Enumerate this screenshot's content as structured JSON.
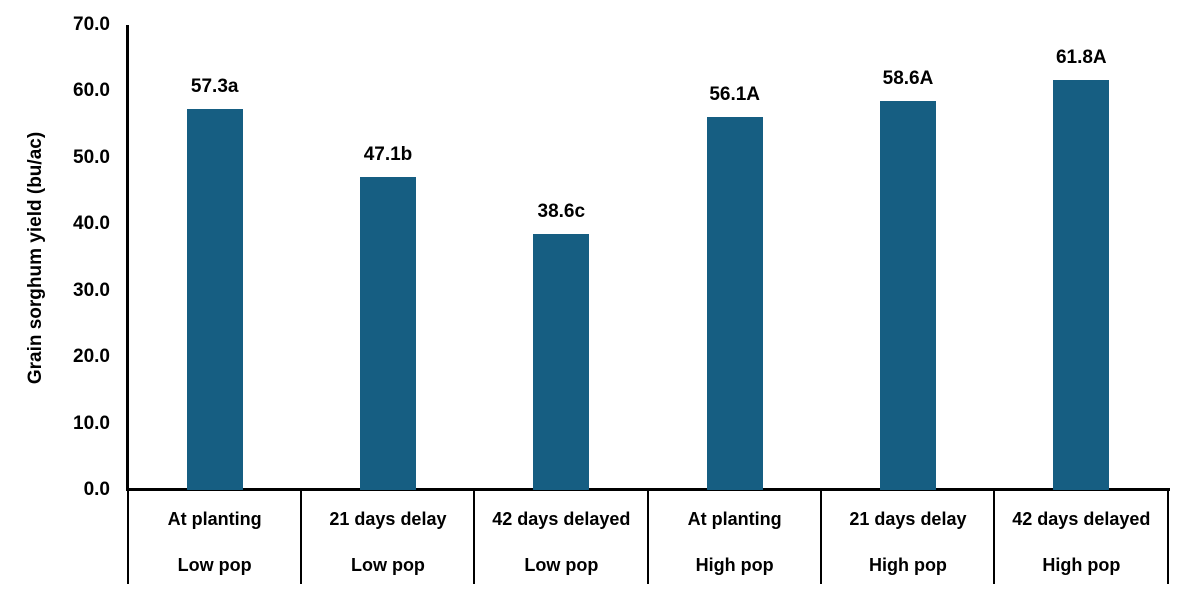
{
  "chart_data": {
    "type": "bar",
    "ylabel": "Grain sorghum yield (bu/ac)",
    "xlabel": "",
    "ylim": [
      0,
      70
    ],
    "ytick_step": 10,
    "ytick_labels": [
      "0.0",
      "10.0",
      "20.0",
      "30.0",
      "40.0",
      "50.0",
      "60.0",
      "70.0"
    ],
    "grid": false,
    "legend": false,
    "bar_color": "#165E82",
    "axis_color": "#000000",
    "categories": [
      {
        "line1": "At planting",
        "line2": "Low pop"
      },
      {
        "line1": "21 days delay",
        "line2": "Low pop"
      },
      {
        "line1": "42 days delayed",
        "line2": "Low pop"
      },
      {
        "line1": "At planting",
        "line2": "High pop"
      },
      {
        "line1": "21 days delay",
        "line2": "High pop"
      },
      {
        "line1": "42 days delayed",
        "line2": "High pop"
      }
    ],
    "values": [
      57.3,
      47.1,
      38.6,
      56.1,
      58.6,
      61.8
    ],
    "data_labels": [
      "57.3a",
      "47.1b",
      "38.6c",
      "56.1A",
      "58.6A",
      "61.8A"
    ]
  }
}
